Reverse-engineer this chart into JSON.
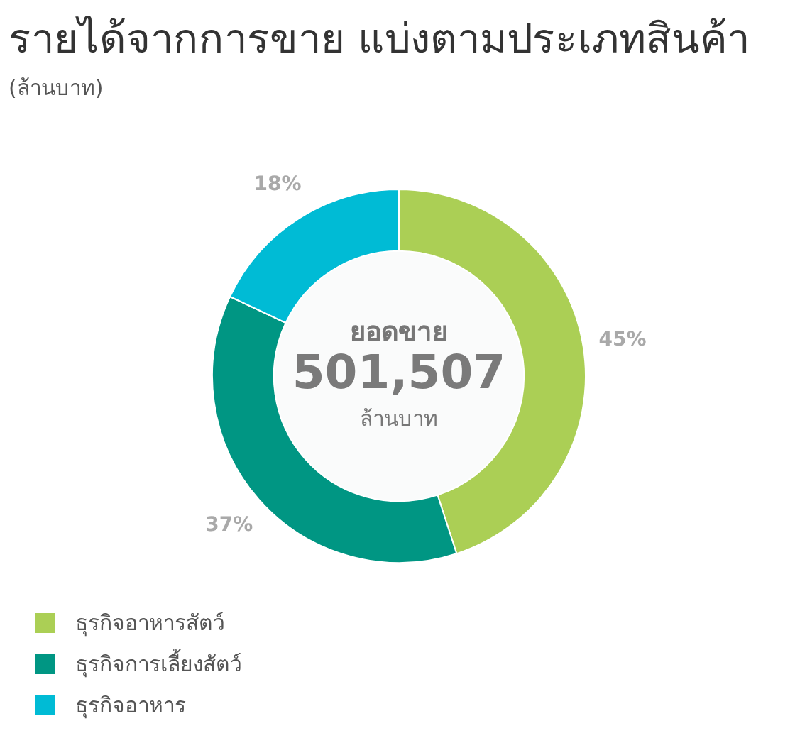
{
  "chart_data": {
    "type": "donut",
    "title": "รายได้จากการขาย แบ่งตามประเภทสินค้า",
    "subtitle": "(ล้านบาท)",
    "categories": [
      "ธุรกิจอาหารสัตว์",
      "ธุรกิจการเลี้ยงสัตว์",
      "ธุรกิจอาหาร"
    ],
    "values": [
      45,
      37,
      18
    ],
    "colors": [
      "#abcf55",
      "#009683",
      "#00bbd5"
    ],
    "value_labels": [
      "45%",
      "37%",
      "18%"
    ],
    "annotations": [
      "ยอดขาย",
      "501,507",
      "ล้านบาท"
    ],
    "legend": "bottom left"
  }
}
